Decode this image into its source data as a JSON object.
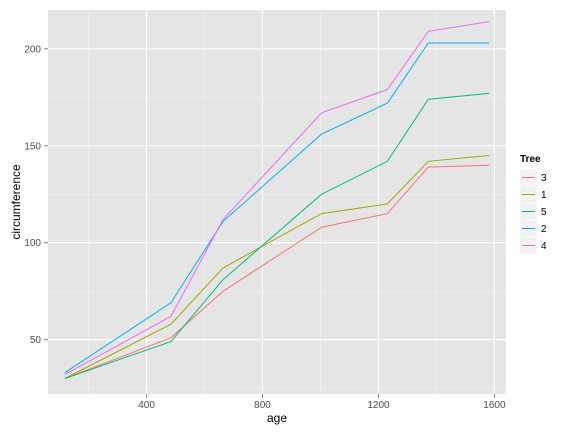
{
  "chart_data": {
    "type": "line",
    "title": "",
    "xlabel": "age",
    "ylabel": "circumference",
    "xlim": [
      60,
      1640
    ],
    "ylim": [
      22,
      220
    ],
    "x_ticks": [
      400,
      800,
      1200,
      1600
    ],
    "y_ticks": [
      50,
      100,
      150,
      200
    ],
    "grid": true,
    "legend": {
      "title": "Tree",
      "position": "right"
    },
    "x": [
      118,
      484,
      664,
      1004,
      1231,
      1372,
      1582
    ],
    "series": [
      {
        "name": "3",
        "color": "#F8766D",
        "values": [
          30,
          51,
          75,
          108,
          115,
          139,
          140
        ]
      },
      {
        "name": "1",
        "color": "#A3A500",
        "values": [
          30,
          58,
          87,
          115,
          120,
          142,
          145
        ]
      },
      {
        "name": "5",
        "color": "#00BF7D",
        "values": [
          30,
          49,
          81,
          125,
          142,
          174,
          177
        ]
      },
      {
        "name": "2",
        "color": "#00B0F6",
        "values": [
          33,
          69,
          111,
          156,
          172,
          203,
          203
        ]
      },
      {
        "name": "4",
        "color": "#E76BF3",
        "values": [
          32,
          62,
          112,
          167,
          179,
          209,
          214
        ]
      }
    ]
  }
}
